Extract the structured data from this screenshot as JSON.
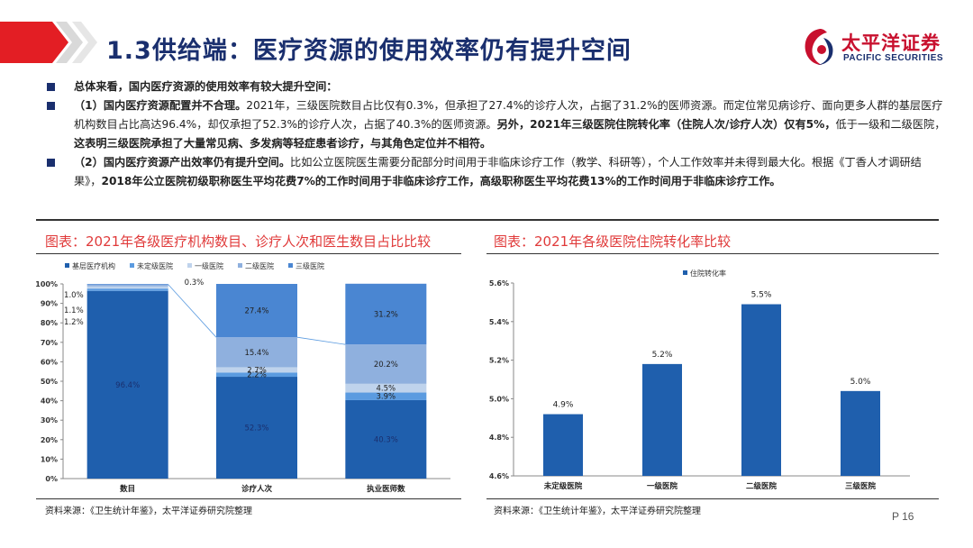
{
  "header": {
    "title": "1.3供给端：医疗资源的使用效率仍有提升空间",
    "logo_cn": "太平洋证券",
    "logo_en": "PACIFIC SECURITIES"
  },
  "bullets": {
    "b1": "总体来看，国内医疗资源的使用效率有较大提升空间：",
    "b2": {
      "t1": "（1）国内医疗资源配置并不合理。",
      "t2": "2021年，三级医院数目占比仅有0.3%，但承担了27.4%的诊疗人次，占据了31.2%的医师资源。而定位常见病诊疗、面向更多人群的基层医疗机构数目占比高达96.4%，却仅承担了52.3%的诊疗人次，占据了40.3%的医师资源。",
      "t3": "另外，2021年三级医院住院转化率（住院人次/诊疗人次）仅有5%，",
      "t4": "低于一级和二级医院，",
      "t5": "这表明三级医院承担了大量常见病、多发病等轻症患者诊疗，与其角色定位并不相符。"
    },
    "b3": {
      "t1": "（2）国内医疗资源产出效率仍有提升空间。",
      "t2": "比如公立医院医生需要分配部分时间用于非临床诊疗工作（教学、科研等），个人工作效率并未得到最大化。根据《丁香人才调研结果》，",
      "t3": "2018年公立医院初级职称医生平均花费7%的工作时间用于非临床诊疗工作，高级职称医生平均花费13%的工作时间用于非临床诊疗工作。"
    }
  },
  "left_panel": {
    "title": "图表：2021年各级医疗机构数目、诊疗人次和医生数目占比比较",
    "source": "资料来源：《卫生统计年鉴》，太平洋证券研究院整理"
  },
  "right_panel": {
    "title": "图表：2021年各级医院住院转化率比较",
    "source": "资料来源：《卫生统计年鉴》，太平洋证券研究院整理"
  },
  "page": "P 16",
  "colors": {
    "navy": "#1a2f6e",
    "red": "#c8102e",
    "series": [
      "#1f5fad",
      "#5b9be0",
      "#bfd3ec",
      "#8fb0de",
      "#4a86d2"
    ]
  },
  "chart_data": [
    {
      "type": "bar",
      "stacked": true,
      "categories": [
        "数目",
        "诊疗人次",
        "执业医师数"
      ],
      "series": [
        {
          "name": "基层医疗机构",
          "values": [
            96.4,
            52.3,
            40.3
          ],
          "labels": [
            "96.4%",
            "52.3%",
            "40.3%"
          ]
        },
        {
          "name": "未定级医院",
          "values": [
            1.2,
            2.2,
            3.9
          ],
          "labels": [
            "1.2%",
            "2.2%",
            "3.9%"
          ]
        },
        {
          "name": "一级医院",
          "values": [
            1.1,
            2.7,
            4.5
          ],
          "labels": [
            "1.1%",
            "2.7%",
            "4.5%"
          ]
        },
        {
          "name": "二级医院",
          "values": [
            1.0,
            15.4,
            20.2
          ],
          "labels": [
            "1.0%",
            "15.4%",
            "20.2%"
          ]
        },
        {
          "name": "三级医院",
          "values": [
            0.3,
            27.4,
            31.2
          ],
          "labels": [
            "0.3%",
            "27.4%",
            "31.2%"
          ]
        }
      ],
      "yticks": [
        "0%",
        "10%",
        "20%",
        "30%",
        "40%",
        "50%",
        "60%",
        "70%",
        "80%",
        "90%",
        "100%"
      ],
      "ylim": [
        0,
        100
      ],
      "legend": "top",
      "connector_lines": true
    },
    {
      "type": "bar",
      "categories": [
        "未定级医院",
        "一级医院",
        "二级医院",
        "三级医院"
      ],
      "series": [
        {
          "name": "住院转化率",
          "values": [
            4.92,
            5.18,
            5.49,
            5.04
          ],
          "labels": [
            "4.9%",
            "5.2%",
            "5.5%",
            "5.0%"
          ]
        }
      ],
      "yticks": [
        "4.6%",
        "4.8%",
        "5.0%",
        "5.2%",
        "5.4%",
        "5.6%"
      ],
      "ylim": [
        4.6,
        5.6
      ],
      "legend": "top"
    }
  ]
}
